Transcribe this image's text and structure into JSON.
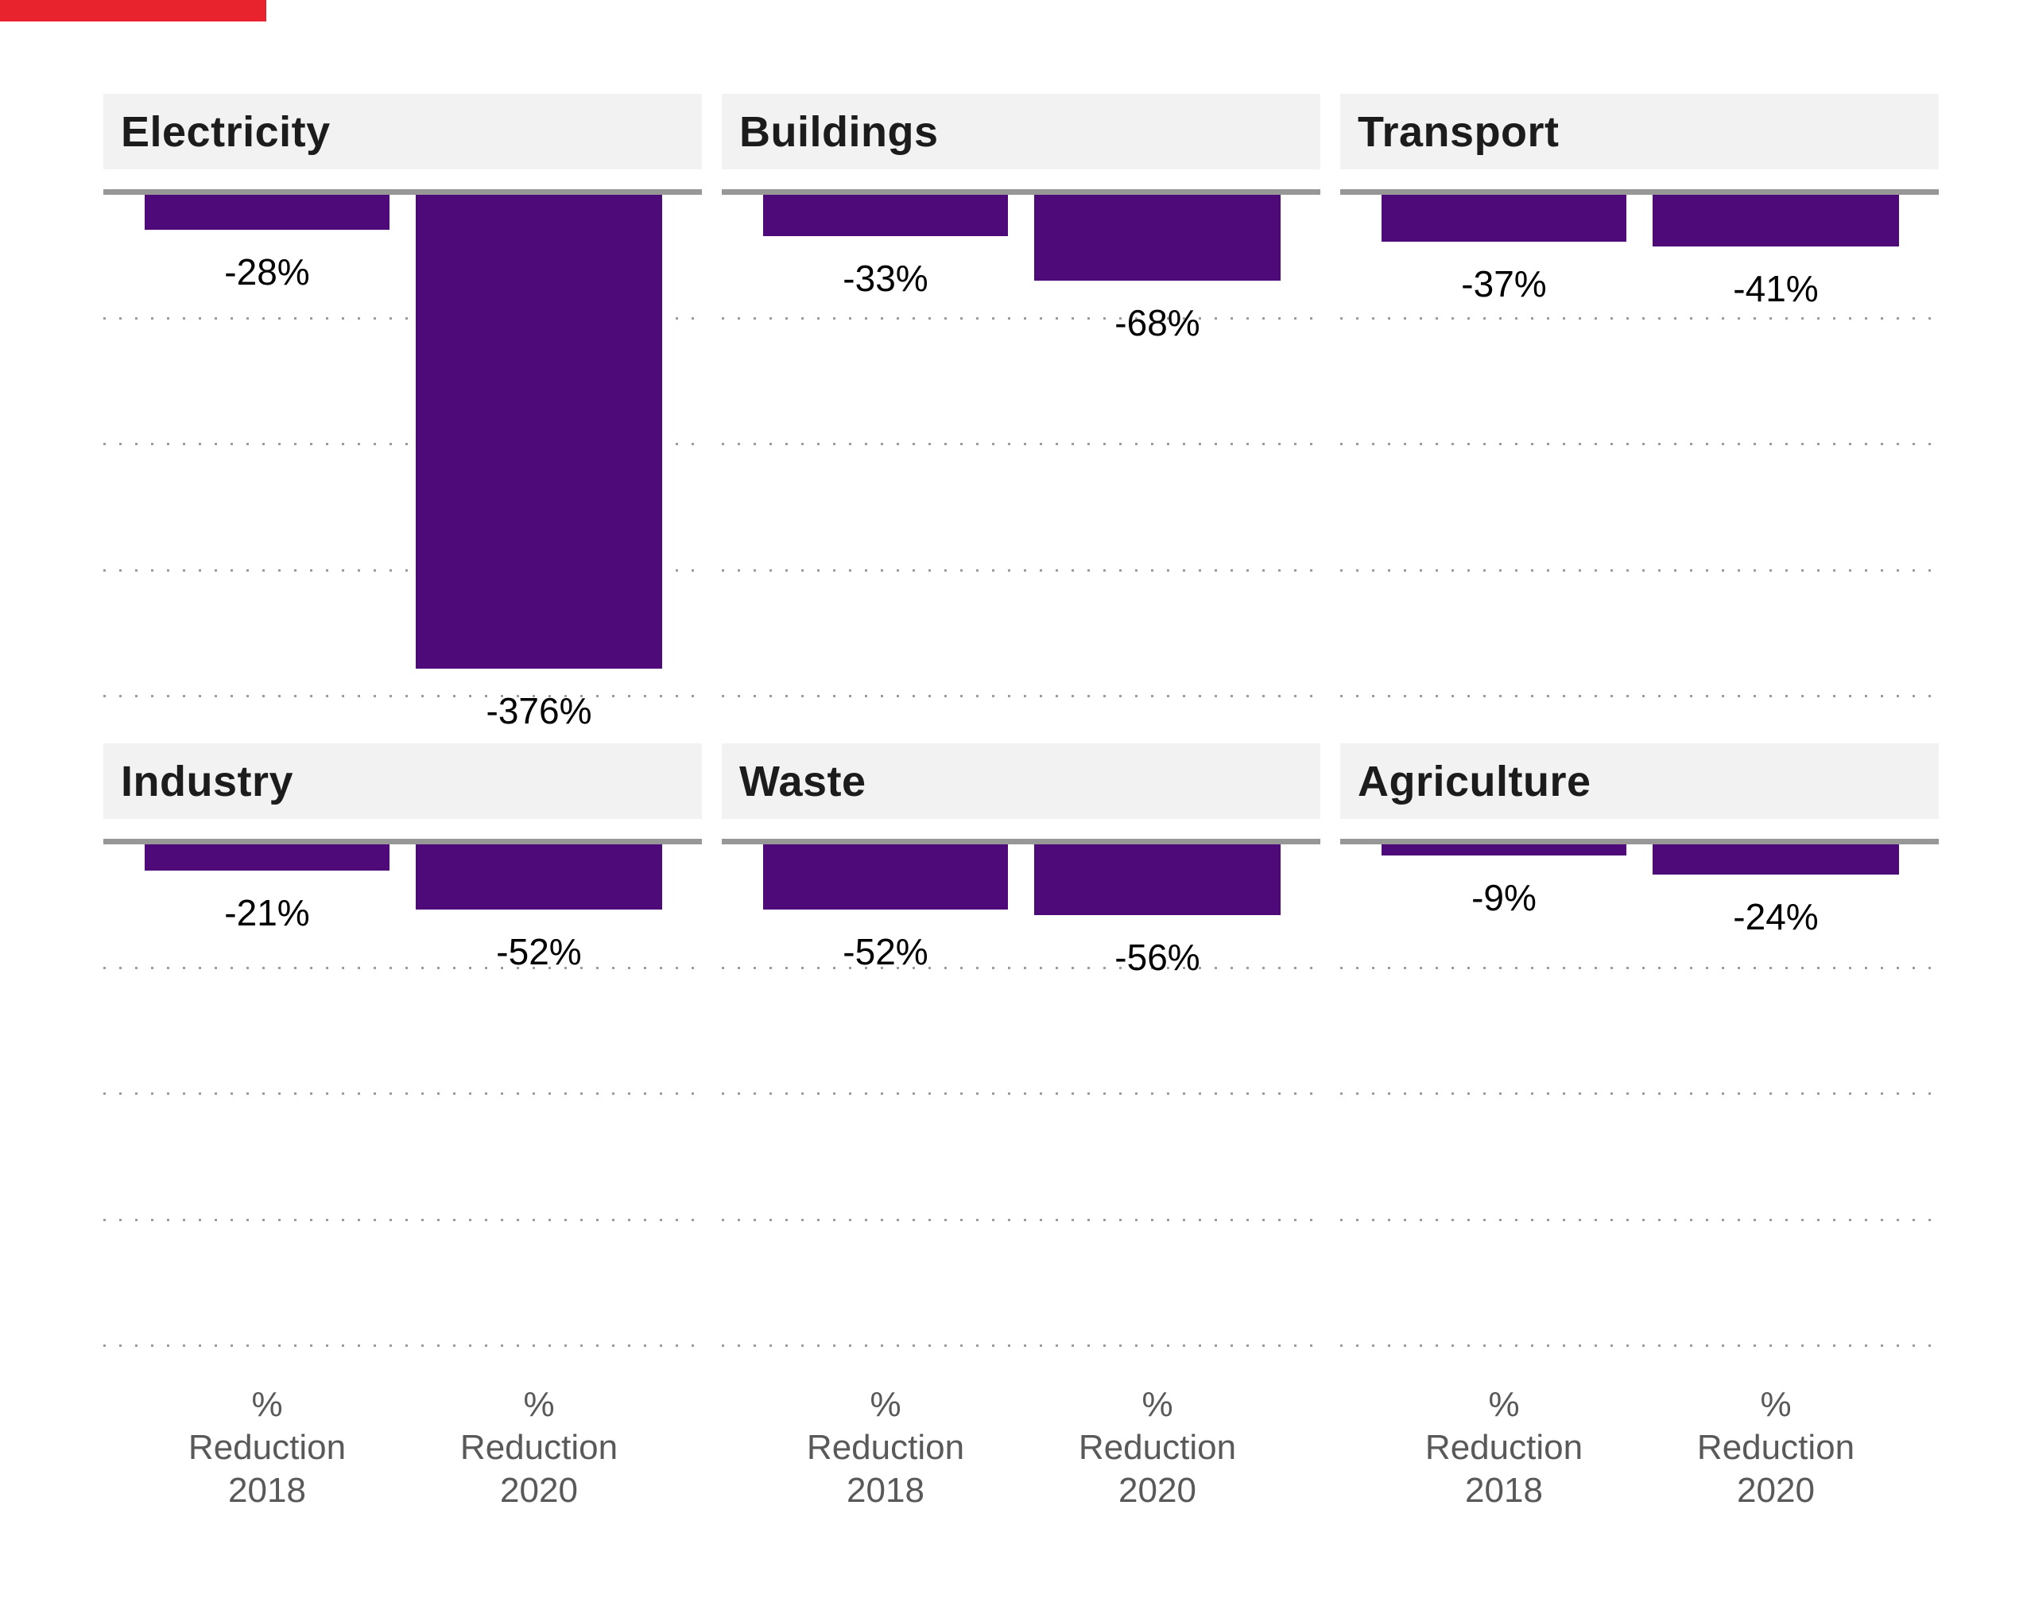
{
  "page": {
    "background": "#ffffff"
  },
  "brand": {
    "red_strip_color": "#e8232d",
    "bar_color": "#4d0a78",
    "header_band_color": "#f2f2f2",
    "title_color": "#1c1c1c",
    "axis_line_color": "#979797",
    "gridline_color": "#9c9c9c",
    "value_label_color": "#000000",
    "category_label_color": "#595959"
  },
  "chart_data": {
    "type": "bar",
    "layout": "small-multiples, 2 rows x 3 columns, bars extend downward from zero axis",
    "title": "",
    "categories": [
      "% Reduction 2018",
      "% Reduction 2020"
    ],
    "category_lines": [
      [
        "%",
        "Reduction",
        "2018"
      ],
      [
        "%",
        "Reduction",
        "2020"
      ]
    ],
    "ylim": [
      -400,
      0
    ],
    "gridlines_pct": [
      -100,
      -200,
      -300,
      -400
    ],
    "grid_style": "dotted horizontal gridlines, no y-axis tick labels",
    "legend": "none",
    "bar_color": "#4d0a78",
    "panels": [
      {
        "title": "Electricity",
        "values": [
          -28,
          -376
        ],
        "labels": [
          "-28%",
          "-376%"
        ]
      },
      {
        "title": "Buildings",
        "values": [
          -33,
          -68
        ],
        "labels": [
          "-33%",
          "-68%"
        ]
      },
      {
        "title": "Transport",
        "values": [
          -37,
          -41
        ],
        "labels": [
          "-37%",
          "-41%"
        ]
      },
      {
        "title": "Industry",
        "values": [
          -21,
          -52
        ],
        "labels": [
          "-21%",
          "-52%"
        ]
      },
      {
        "title": "Waste",
        "values": [
          -52,
          -56
        ],
        "labels": [
          "-52%",
          "-56%"
        ]
      },
      {
        "title": "Agriculture",
        "values": [
          -9,
          -24
        ],
        "labels": [
          "-9%",
          "-24%"
        ]
      }
    ]
  }
}
